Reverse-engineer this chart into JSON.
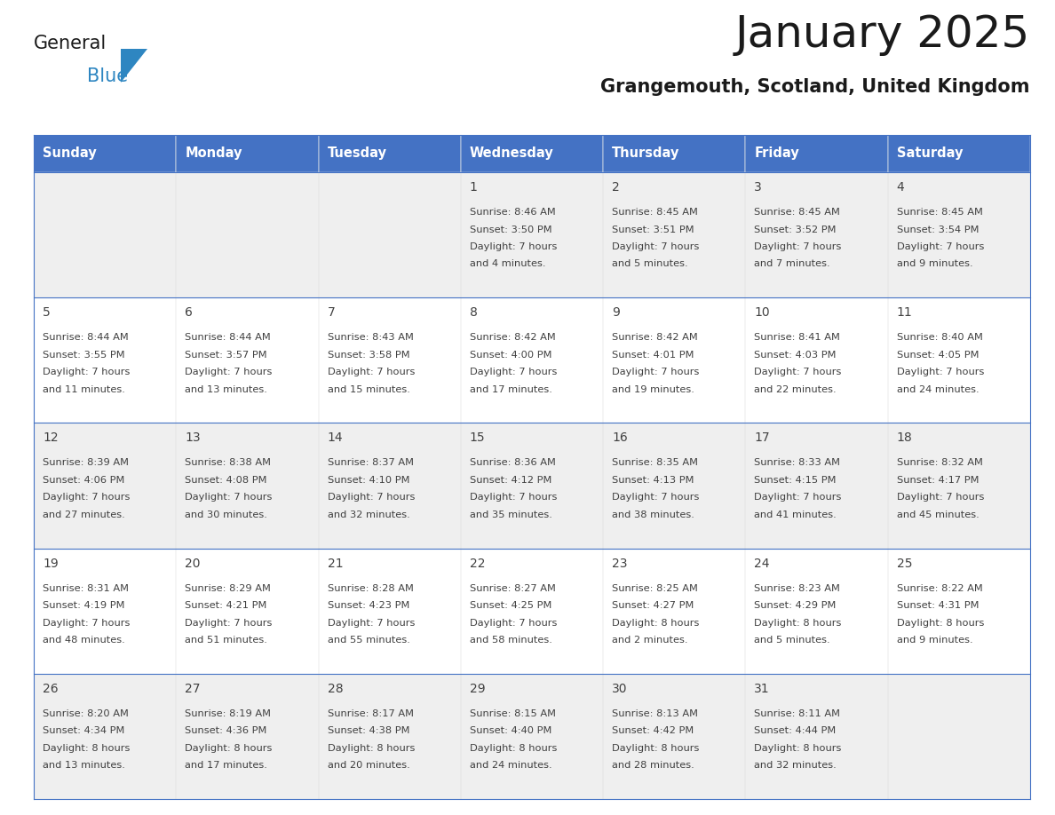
{
  "title": "January 2025",
  "subtitle": "Grangemouth, Scotland, United Kingdom",
  "header_color": "#4472C4",
  "header_text_color": "#FFFFFF",
  "days_of_week": [
    "Sunday",
    "Monday",
    "Tuesday",
    "Wednesday",
    "Thursday",
    "Friday",
    "Saturday"
  ],
  "background_color": "#FFFFFF",
  "cell_bg_color": "#FFFFFF",
  "cell_alt_bg_color": "#EFEFEF",
  "border_color": "#4472C4",
  "row_sep_color": "#4472C4",
  "text_color": "#404040",
  "title_color": "#1a1a1a",
  "logo_general_color": "#1a1a1a",
  "logo_blue_color": "#2E86C1",
  "logo_triangle_color": "#2E86C1",
  "calendar_data": [
    [
      {
        "day": null,
        "sunrise": null,
        "sunset": null,
        "daylight": null
      },
      {
        "day": null,
        "sunrise": null,
        "sunset": null,
        "daylight": null
      },
      {
        "day": null,
        "sunrise": null,
        "sunset": null,
        "daylight": null
      },
      {
        "day": 1,
        "sunrise": "8:46 AM",
        "sunset": "3:50 PM",
        "daylight": "7 hours and 4 minutes."
      },
      {
        "day": 2,
        "sunrise": "8:45 AM",
        "sunset": "3:51 PM",
        "daylight": "7 hours and 5 minutes."
      },
      {
        "day": 3,
        "sunrise": "8:45 AM",
        "sunset": "3:52 PM",
        "daylight": "7 hours and 7 minutes."
      },
      {
        "day": 4,
        "sunrise": "8:45 AM",
        "sunset": "3:54 PM",
        "daylight": "7 hours and 9 minutes."
      }
    ],
    [
      {
        "day": 5,
        "sunrise": "8:44 AM",
        "sunset": "3:55 PM",
        "daylight": "7 hours and 11 minutes."
      },
      {
        "day": 6,
        "sunrise": "8:44 AM",
        "sunset": "3:57 PM",
        "daylight": "7 hours and 13 minutes."
      },
      {
        "day": 7,
        "sunrise": "8:43 AM",
        "sunset": "3:58 PM",
        "daylight": "7 hours and 15 minutes."
      },
      {
        "day": 8,
        "sunrise": "8:42 AM",
        "sunset": "4:00 PM",
        "daylight": "7 hours and 17 minutes."
      },
      {
        "day": 9,
        "sunrise": "8:42 AM",
        "sunset": "4:01 PM",
        "daylight": "7 hours and 19 minutes."
      },
      {
        "day": 10,
        "sunrise": "8:41 AM",
        "sunset": "4:03 PM",
        "daylight": "7 hours and 22 minutes."
      },
      {
        "day": 11,
        "sunrise": "8:40 AM",
        "sunset": "4:05 PM",
        "daylight": "7 hours and 24 minutes."
      }
    ],
    [
      {
        "day": 12,
        "sunrise": "8:39 AM",
        "sunset": "4:06 PM",
        "daylight": "7 hours and 27 minutes."
      },
      {
        "day": 13,
        "sunrise": "8:38 AM",
        "sunset": "4:08 PM",
        "daylight": "7 hours and 30 minutes."
      },
      {
        "day": 14,
        "sunrise": "8:37 AM",
        "sunset": "4:10 PM",
        "daylight": "7 hours and 32 minutes."
      },
      {
        "day": 15,
        "sunrise": "8:36 AM",
        "sunset": "4:12 PM",
        "daylight": "7 hours and 35 minutes."
      },
      {
        "day": 16,
        "sunrise": "8:35 AM",
        "sunset": "4:13 PM",
        "daylight": "7 hours and 38 minutes."
      },
      {
        "day": 17,
        "sunrise": "8:33 AM",
        "sunset": "4:15 PM",
        "daylight": "7 hours and 41 minutes."
      },
      {
        "day": 18,
        "sunrise": "8:32 AM",
        "sunset": "4:17 PM",
        "daylight": "7 hours and 45 minutes."
      }
    ],
    [
      {
        "day": 19,
        "sunrise": "8:31 AM",
        "sunset": "4:19 PM",
        "daylight": "7 hours and 48 minutes."
      },
      {
        "day": 20,
        "sunrise": "8:29 AM",
        "sunset": "4:21 PM",
        "daylight": "7 hours and 51 minutes."
      },
      {
        "day": 21,
        "sunrise": "8:28 AM",
        "sunset": "4:23 PM",
        "daylight": "7 hours and 55 minutes."
      },
      {
        "day": 22,
        "sunrise": "8:27 AM",
        "sunset": "4:25 PM",
        "daylight": "7 hours and 58 minutes."
      },
      {
        "day": 23,
        "sunrise": "8:25 AM",
        "sunset": "4:27 PM",
        "daylight": "8 hours and 2 minutes."
      },
      {
        "day": 24,
        "sunrise": "8:23 AM",
        "sunset": "4:29 PM",
        "daylight": "8 hours and 5 minutes."
      },
      {
        "day": 25,
        "sunrise": "8:22 AM",
        "sunset": "4:31 PM",
        "daylight": "8 hours and 9 minutes."
      }
    ],
    [
      {
        "day": 26,
        "sunrise": "8:20 AM",
        "sunset": "4:34 PM",
        "daylight": "8 hours and 13 minutes."
      },
      {
        "day": 27,
        "sunrise": "8:19 AM",
        "sunset": "4:36 PM",
        "daylight": "8 hours and 17 minutes."
      },
      {
        "day": 28,
        "sunrise": "8:17 AM",
        "sunset": "4:38 PM",
        "daylight": "8 hours and 20 minutes."
      },
      {
        "day": 29,
        "sunrise": "8:15 AM",
        "sunset": "4:40 PM",
        "daylight": "8 hours and 24 minutes."
      },
      {
        "day": 30,
        "sunrise": "8:13 AM",
        "sunset": "4:42 PM",
        "daylight": "8 hours and 28 minutes."
      },
      {
        "day": 31,
        "sunrise": "8:11 AM",
        "sunset": "4:44 PM",
        "daylight": "8 hours and 32 minutes."
      },
      {
        "day": null,
        "sunrise": null,
        "sunset": null,
        "daylight": null
      }
    ]
  ]
}
